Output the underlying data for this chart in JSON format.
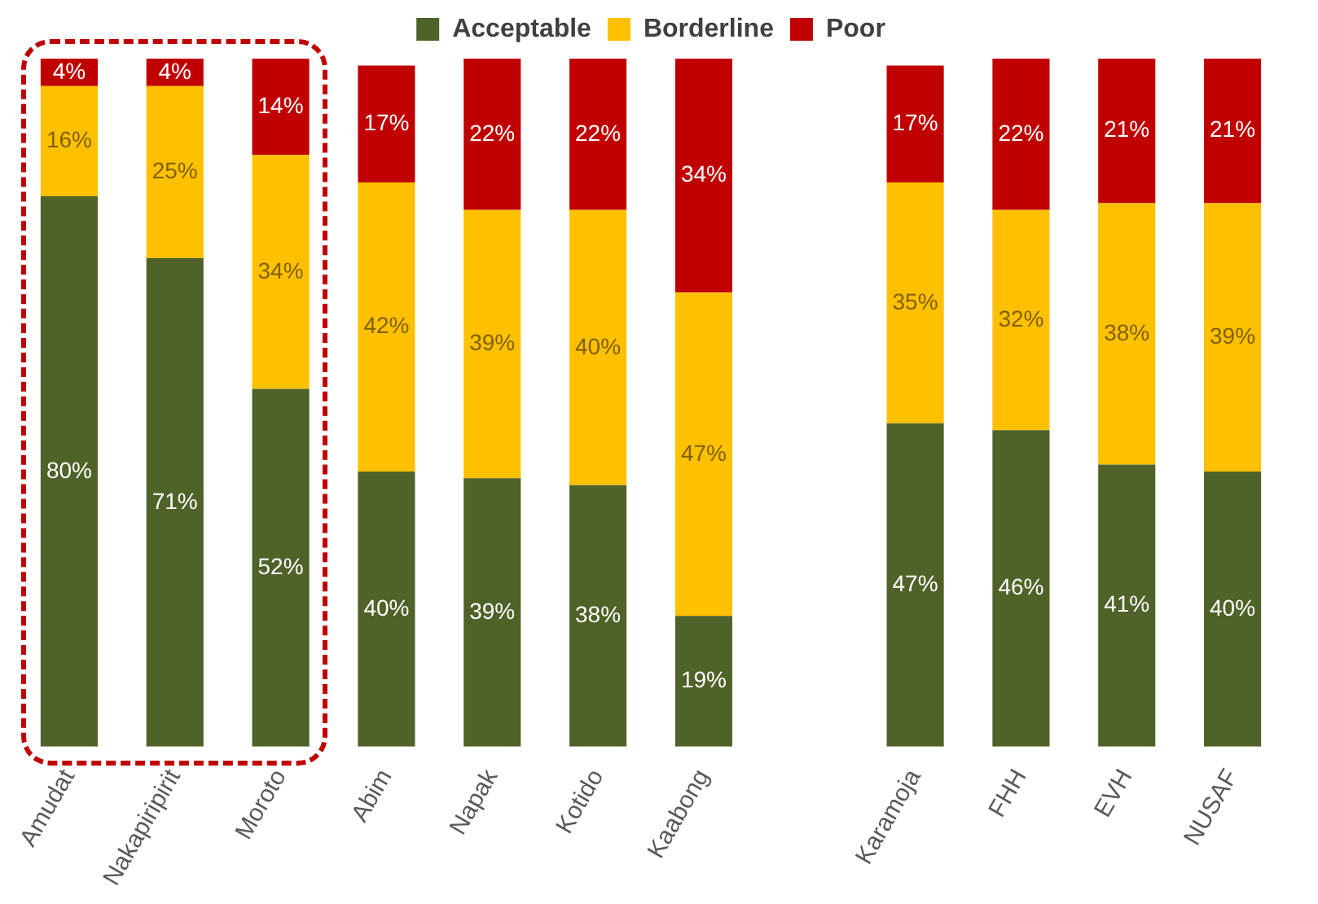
{
  "chart_data": {
    "type": "bar",
    "stacked": true,
    "legend": "top",
    "grid": false,
    "categories": [
      "Amudat",
      "Nakapiripirit",
      "Moroto",
      "Abim",
      "Napak",
      "Kotido",
      "Kaabong",
      null,
      "Karamoja",
      "FHH",
      "EVH",
      "NUSAF"
    ],
    "series": [
      {
        "name": "Acceptable",
        "color": "#4f6228",
        "values": [
          80,
          71,
          52,
          40,
          39,
          38,
          19,
          null,
          47,
          46,
          41,
          40
        ],
        "value_labels": [
          "80%",
          "71%",
          "52%",
          "40%",
          "39%",
          "38%",
          "19%",
          null,
          "47%",
          "46%",
          "41%",
          "40%"
        ]
      },
      {
        "name": "Borderline",
        "color": "#ffc000",
        "values": [
          16,
          25,
          34,
          42,
          39,
          40,
          47,
          null,
          35,
          32,
          38,
          39
        ],
        "value_labels": [
          "16%",
          "25%",
          "34%",
          "42%",
          "39%",
          "40%",
          "47%",
          null,
          "35%",
          "32%",
          "38%",
          "39%"
        ]
      },
      {
        "name": "Poor",
        "color": "#c00000",
        "values": [
          4,
          4,
          14,
          17,
          22,
          22,
          34,
          null,
          17,
          22,
          21,
          21
        ],
        "value_labels": [
          "4%",
          "4%",
          "14%",
          "17%",
          "22%",
          "22%",
          "34%",
          null,
          "17%",
          "22%",
          "21%",
          "21%"
        ]
      }
    ]
  }
}
